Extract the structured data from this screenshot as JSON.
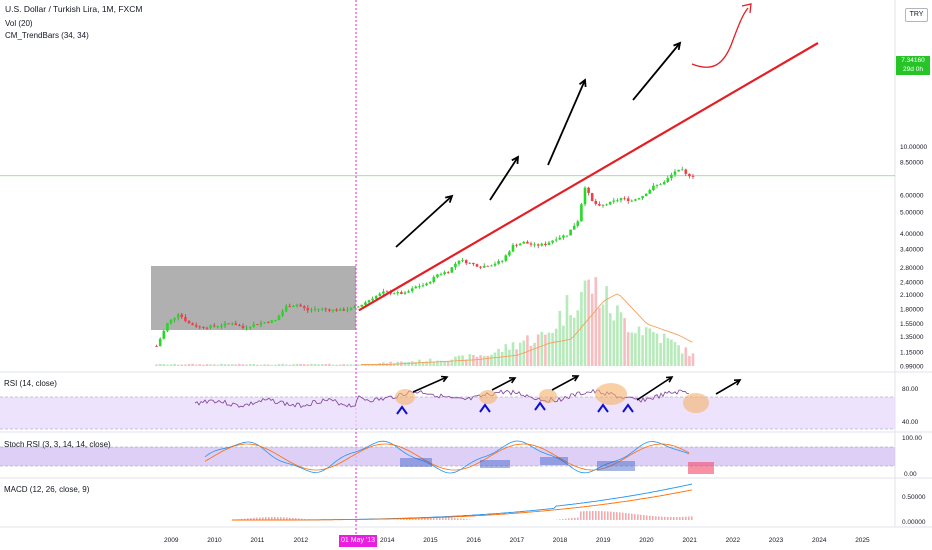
{
  "header": {
    "symbol": "U.S. Dollar / Turkish Lira, 1M, FXCM",
    "volume": "Vol (20)",
    "trendbars": "CM_TrendBars (34, 34)"
  },
  "currency_badge": "TRY",
  "last_price": {
    "value": "7.34160",
    "countdown": "29d 0h"
  },
  "crosshair_date": "01 May '13",
  "panes": {
    "rsi": "RSI (14, close)",
    "stoch": "Stoch RSI (3, 3, 14, 14, close)",
    "macd": "MACD (12, 26, close, 9)"
  },
  "colors": {
    "up": "#26d926",
    "down": "#f0404a",
    "trendline": "#e31e24",
    "accent": "#e91ee0"
  },
  "chart_data": {
    "type": "candlestick",
    "log_scale": true,
    "price_axis_ticks": [
      "10.00000",
      "8.50000",
      "7.34160",
      "6.00000",
      "5.00000",
      "4.00000",
      "3.40000",
      "2.80000",
      "2.40000",
      "2.10000",
      "1.80000",
      "1.55000",
      "1.35000",
      "1.15000",
      "0.99000"
    ],
    "time_axis_ticks": [
      "2009",
      "2010",
      "2011",
      "2012",
      "2014",
      "2015",
      "2016",
      "2017",
      "2018",
      "2019",
      "2020",
      "2021",
      "2022",
      "2023",
      "2024",
      "2025"
    ],
    "rsi_axis_ticks": [
      "80.00",
      "40.00"
    ],
    "stoch_axis_ticks": [
      "100.00",
      "0.00"
    ],
    "macd_axis_ticks": [
      "0.50000",
      "0.00000"
    ],
    "close_series": [
      {
        "date": "2008-09",
        "close": 1.22
      },
      {
        "date": "2008-12",
        "close": 1.55
      },
      {
        "date": "2009-03",
        "close": 1.72
      },
      {
        "date": "2009-06",
        "close": 1.55
      },
      {
        "date": "2009-09",
        "close": 1.49
      },
      {
        "date": "2009-12",
        "close": 1.5
      },
      {
        "date": "2010-03",
        "close": 1.52
      },
      {
        "date": "2010-06",
        "close": 1.56
      },
      {
        "date": "2010-09",
        "close": 1.48
      },
      {
        "date": "2010-12",
        "close": 1.53
      },
      {
        "date": "2011-03",
        "close": 1.57
      },
      {
        "date": "2011-06",
        "close": 1.6
      },
      {
        "date": "2011-09",
        "close": 1.85
      },
      {
        "date": "2011-12",
        "close": 1.89
      },
      {
        "date": "2012-03",
        "close": 1.78
      },
      {
        "date": "2012-06",
        "close": 1.81
      },
      {
        "date": "2012-09",
        "close": 1.79
      },
      {
        "date": "2012-12",
        "close": 1.78
      },
      {
        "date": "2013-03",
        "close": 1.81
      },
      {
        "date": "2013-05",
        "close": 1.85
      },
      {
        "date": "2013-09",
        "close": 2.03
      },
      {
        "date": "2013-12",
        "close": 2.15
      },
      {
        "date": "2014-03",
        "close": 2.14
      },
      {
        "date": "2014-06",
        "close": 2.12
      },
      {
        "date": "2014-09",
        "close": 2.28
      },
      {
        "date": "2014-12",
        "close": 2.34
      },
      {
        "date": "2015-03",
        "close": 2.6
      },
      {
        "date": "2015-06",
        "close": 2.68
      },
      {
        "date": "2015-09",
        "close": 3.03
      },
      {
        "date": "2015-12",
        "close": 2.92
      },
      {
        "date": "2016-03",
        "close": 2.82
      },
      {
        "date": "2016-06",
        "close": 2.88
      },
      {
        "date": "2016-09",
        "close": 3.0
      },
      {
        "date": "2016-12",
        "close": 3.52
      },
      {
        "date": "2017-03",
        "close": 3.64
      },
      {
        "date": "2017-06",
        "close": 3.52
      },
      {
        "date": "2017-09",
        "close": 3.57
      },
      {
        "date": "2017-12",
        "close": 3.8
      },
      {
        "date": "2018-03",
        "close": 3.95
      },
      {
        "date": "2018-06",
        "close": 4.57
      },
      {
        "date": "2018-08",
        "close": 6.55
      },
      {
        "date": "2018-10",
        "close": 5.6
      },
      {
        "date": "2018-12",
        "close": 5.3
      },
      {
        "date": "2019-03",
        "close": 5.52
      },
      {
        "date": "2019-06",
        "close": 5.78
      },
      {
        "date": "2019-09",
        "close": 5.65
      },
      {
        "date": "2019-12",
        "close": 5.95
      },
      {
        "date": "2020-03",
        "close": 6.55
      },
      {
        "date": "2020-06",
        "close": 6.85
      },
      {
        "date": "2020-09",
        "close": 7.7
      },
      {
        "date": "2020-11",
        "close": 7.75
      },
      {
        "date": "2020-12",
        "close": 7.43
      },
      {
        "date": "2021-02",
        "close": 7.34
      }
    ],
    "volume_series": [
      {
        "date": "2013-06",
        "volume": 0.02
      },
      {
        "date": "2014-06",
        "volume": 0.05
      },
      {
        "date": "2015-06",
        "volume": 0.08
      },
      {
        "date": "2016-06",
        "volume": 0.14
      },
      {
        "date": "2017-03",
        "volume": 0.3
      },
      {
        "date": "2017-09",
        "volume": 0.35
      },
      {
        "date": "2018-06",
        "volume": 0.85
      },
      {
        "date": "2018-10",
        "volume": 0.95
      },
      {
        "date": "2019-06",
        "volume": 0.55
      },
      {
        "date": "2020-03",
        "volume": 0.4
      },
      {
        "date": "2020-09",
        "volume": 0.25
      },
      {
        "date": "2021-03",
        "volume": 0.1
      }
    ]
  }
}
